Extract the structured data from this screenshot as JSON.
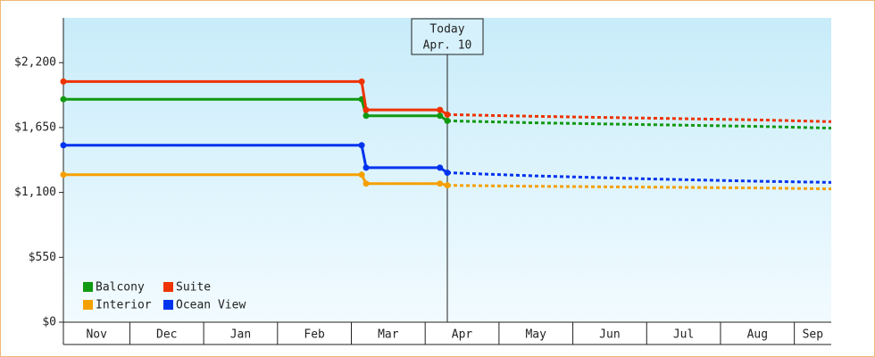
{
  "chart_data": {
    "type": "line",
    "annotation": {
      "title": "Today",
      "date": "Apr. 10",
      "x": 5.3
    },
    "xlim": [
      0.1,
      10.5
    ],
    "xticks": [
      {
        "value": 0,
        "label": "Nov"
      },
      {
        "value": 1,
        "label": "Dec"
      },
      {
        "value": 2,
        "label": "Jan"
      },
      {
        "value": 3,
        "label": "Feb"
      },
      {
        "value": 4,
        "label": "Mar"
      },
      {
        "value": 5,
        "label": "Apr"
      },
      {
        "value": 6,
        "label": "May"
      },
      {
        "value": 7,
        "label": "Jun"
      },
      {
        "value": 8,
        "label": "Jul"
      },
      {
        "value": 9,
        "label": "Aug"
      },
      {
        "value": 10,
        "label": "Sep"
      }
    ],
    "ylim": [
      0,
      2580
    ],
    "yticks": [
      {
        "value": 0,
        "label": "$0"
      },
      {
        "value": 550,
        "label": "$550"
      },
      {
        "value": 1100,
        "label": "$1,100"
      },
      {
        "value": 1650,
        "label": "$1,650"
      },
      {
        "value": 2200,
        "label": "$2,200"
      }
    ],
    "legend": "bottom-left",
    "series": [
      {
        "name": "Balcony",
        "color": "#119911",
        "x": [
          0.1,
          4.14,
          4.2,
          5.2,
          5.3
        ],
        "values": [
          1890,
          1890,
          1750,
          1750,
          1707
        ],
        "forecast_x": [
          5.3,
          6.5,
          8,
          9.5,
          10.5
        ],
        "forecast_values": [
          1707,
          1690,
          1675,
          1660,
          1645
        ]
      },
      {
        "name": "Suite",
        "color": "#ee3300",
        "x": [
          0.1,
          4.14,
          4.2,
          5.2,
          5.3
        ],
        "values": [
          2040,
          2040,
          1800,
          1800,
          1760
        ],
        "forecast_x": [
          5.3,
          6.5,
          8,
          9.5,
          10.5
        ],
        "forecast_values": [
          1760,
          1745,
          1730,
          1715,
          1700
        ]
      },
      {
        "name": "Interior",
        "color": "#f5a000",
        "x": [
          0.1,
          4.14,
          4.2,
          5.2,
          5.3
        ],
        "values": [
          1250,
          1250,
          1175,
          1175,
          1160
        ],
        "forecast_x": [
          5.3,
          6.5,
          8,
          9.5,
          10.5
        ],
        "forecast_values": [
          1160,
          1152,
          1145,
          1138,
          1130
        ]
      },
      {
        "name": "Ocean View",
        "color": "#0033ee",
        "x": [
          0.1,
          4.14,
          4.2,
          5.2,
          5.3
        ],
        "values": [
          1500,
          1500,
          1310,
          1310,
          1267
        ],
        "forecast_x": [
          5.3,
          6.5,
          8,
          9.5,
          10.5
        ],
        "forecast_values": [
          1267,
          1240,
          1215,
          1195,
          1185
        ]
      }
    ]
  }
}
